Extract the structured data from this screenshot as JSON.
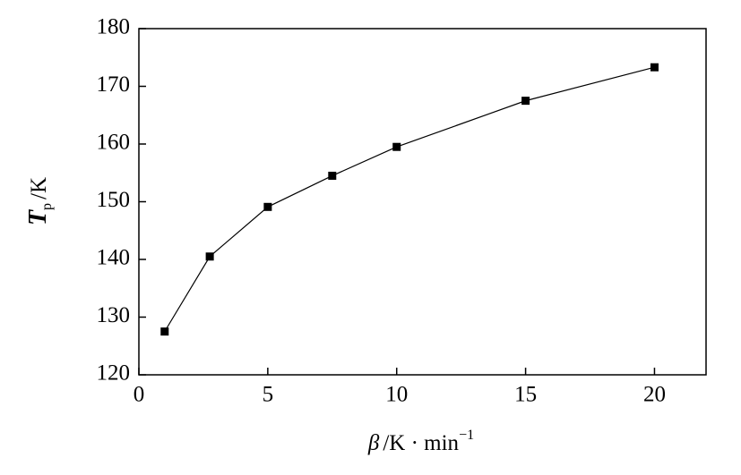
{
  "chart_data": {
    "type": "line",
    "xlabel": {
      "symbol": "β",
      "unit": "/K · min",
      "exp": "−1"
    },
    "ylabel": {
      "symbol": "T",
      "sub": "p",
      "unit": "/K"
    },
    "x": [
      1,
      2.75,
      5,
      7.5,
      10,
      15,
      20
    ],
    "series": [
      {
        "color": "#000000",
        "values": [
          127.5,
          140.5,
          149.1,
          154.5,
          159.5,
          167.5,
          173.3
        ]
      }
    ],
    "xlim": [
      0,
      22
    ],
    "xticks": [
      0,
      5,
      10,
      15,
      20
    ],
    "ylim": [
      120,
      180
    ],
    "yticks": [
      120,
      130,
      140,
      150,
      160,
      170,
      180
    ],
    "grid": false
  }
}
